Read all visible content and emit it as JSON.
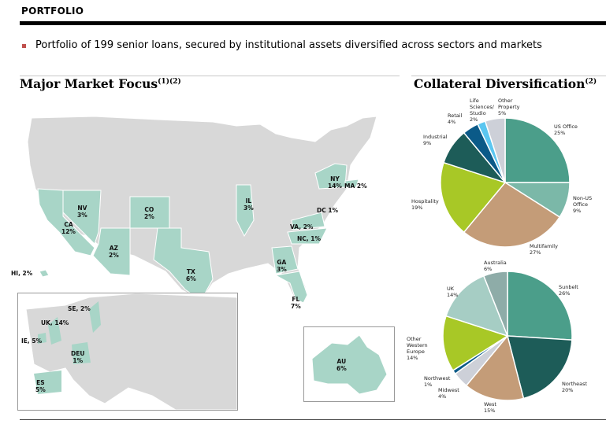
{
  "header": {
    "title": "PORTFOLIO"
  },
  "bullet": "Portfolio of 199 senior loans, secured by institutional assets diversified across sectors and markets",
  "sections": {
    "map_title": "Major Market Focus",
    "map_sup": "(1)(2)",
    "pie_title": "Collateral Diversification",
    "pie_sup": "(2)"
  },
  "map_labels": [
    {
      "name": "NV",
      "pct": "3%"
    },
    {
      "name": "CA",
      "pct": "12%"
    },
    {
      "name": "AZ",
      "pct": "2%"
    },
    {
      "name": "CO",
      "pct": "2%"
    },
    {
      "name": "TX",
      "pct": "6%"
    },
    {
      "name": "IL",
      "pct": "3%"
    },
    {
      "name": "NY",
      "pct": "14%"
    },
    {
      "text": "MA 2%"
    },
    {
      "text": "DC 1%"
    },
    {
      "text": "VA, 2%"
    },
    {
      "text": "NC, 1%"
    },
    {
      "name": "GA",
      "pct": "3%"
    },
    {
      "name": "FL",
      "pct": "7%"
    },
    {
      "text": "HI, 2%"
    },
    {
      "text": "SE, 2%"
    },
    {
      "text": "UK, 14%"
    },
    {
      "text": "IE, 5%"
    },
    {
      "name": "DEU",
      "pct": "1%"
    },
    {
      "name": "ES",
      "pct": "5%"
    },
    {
      "name": "AU",
      "pct": "6%"
    }
  ],
  "chart_data": [
    {
      "type": "pie",
      "title": "Collateral Diversification",
      "colors": [
        "#4b9e8a",
        "#7bb8a8",
        "#c49c78",
        "#a8c826",
        "#1d5c58",
        "#0b5a88",
        "#5bc6f0",
        "#cdd0d8"
      ],
      "slices": [
        {
          "label": "US Office",
          "value": 25
        },
        {
          "label": "Non-US Office",
          "value": 9
        },
        {
          "label": "Multifamily",
          "value": 27
        },
        {
          "label": "Hospitality",
          "value": 19
        },
        {
          "label": "Industrial",
          "value": 9
        },
        {
          "label": "Retail",
          "value": 4
        },
        {
          "label": "Life Sciences/ Studio",
          "value": 2
        },
        {
          "label": "Other Property",
          "value": 5
        }
      ]
    },
    {
      "type": "pie",
      "title": "Geographic",
      "colors": [
        "#4b9e8a",
        "#1d5c58",
        "#c49c78",
        "#cdd0d8",
        "#0b5a88",
        "#a8c826",
        "#a6cdc4",
        "#8eaca8"
      ],
      "slices": [
        {
          "label": "Sunbelt",
          "value": 26
        },
        {
          "label": "Northeast",
          "value": 20
        },
        {
          "label": "West",
          "value": 15
        },
        {
          "label": "Midwest",
          "value": 4
        },
        {
          "label": "Northwest",
          "value": 1
        },
        {
          "label": "Other Western Europe",
          "value": 14
        },
        {
          "label": "UK",
          "value": 14
        },
        {
          "label": "Australia",
          "value": 6
        }
      ]
    }
  ]
}
